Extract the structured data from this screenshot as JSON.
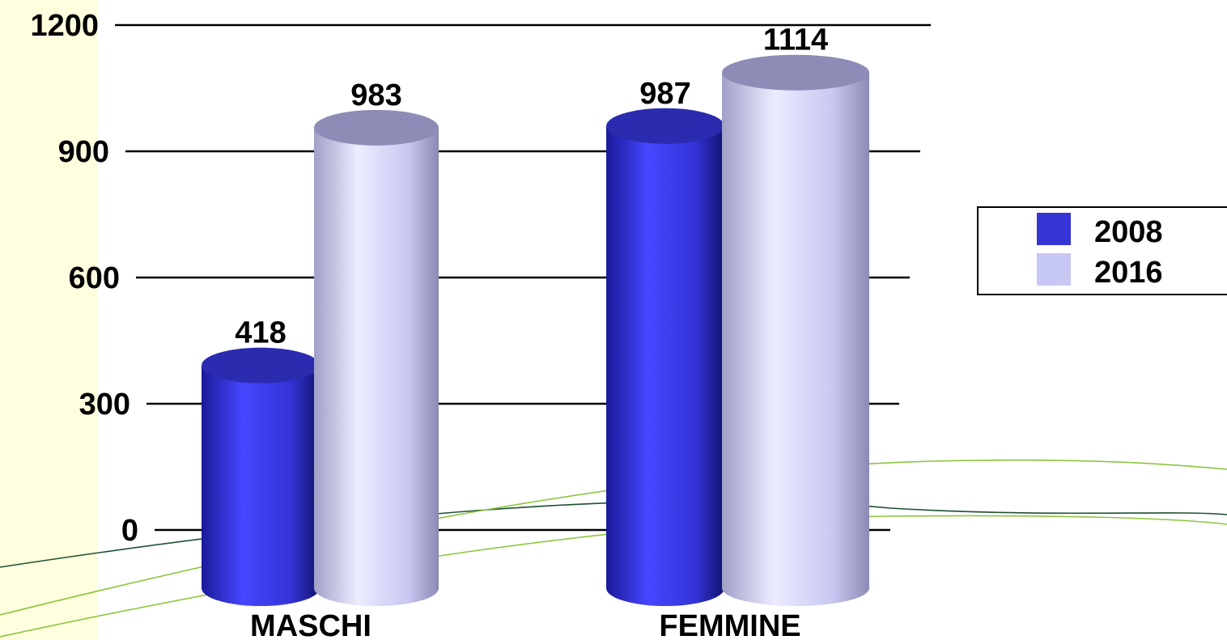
{
  "chart_data": {
    "type": "bar",
    "categories": [
      "MASCHI",
      "FEMMINE"
    ],
    "series": [
      {
        "name": "2008",
        "values": [
          418,
          987
        ],
        "color": "#3535d6"
      },
      {
        "name": "2016",
        "values": [
          983,
          1114
        ],
        "color": "#c8c8f4"
      }
    ],
    "ylim": [
      0,
      1200
    ],
    "yticks": [
      "0",
      "300",
      "600",
      "900",
      "1200"
    ],
    "grid": true,
    "legend": "right",
    "style": "3d-cylinder"
  },
  "colors": {
    "background": "#ffffff",
    "left_strip": "#ffffe0",
    "decor_green": "#8cc63f",
    "decor_dark": "#1e5030"
  }
}
